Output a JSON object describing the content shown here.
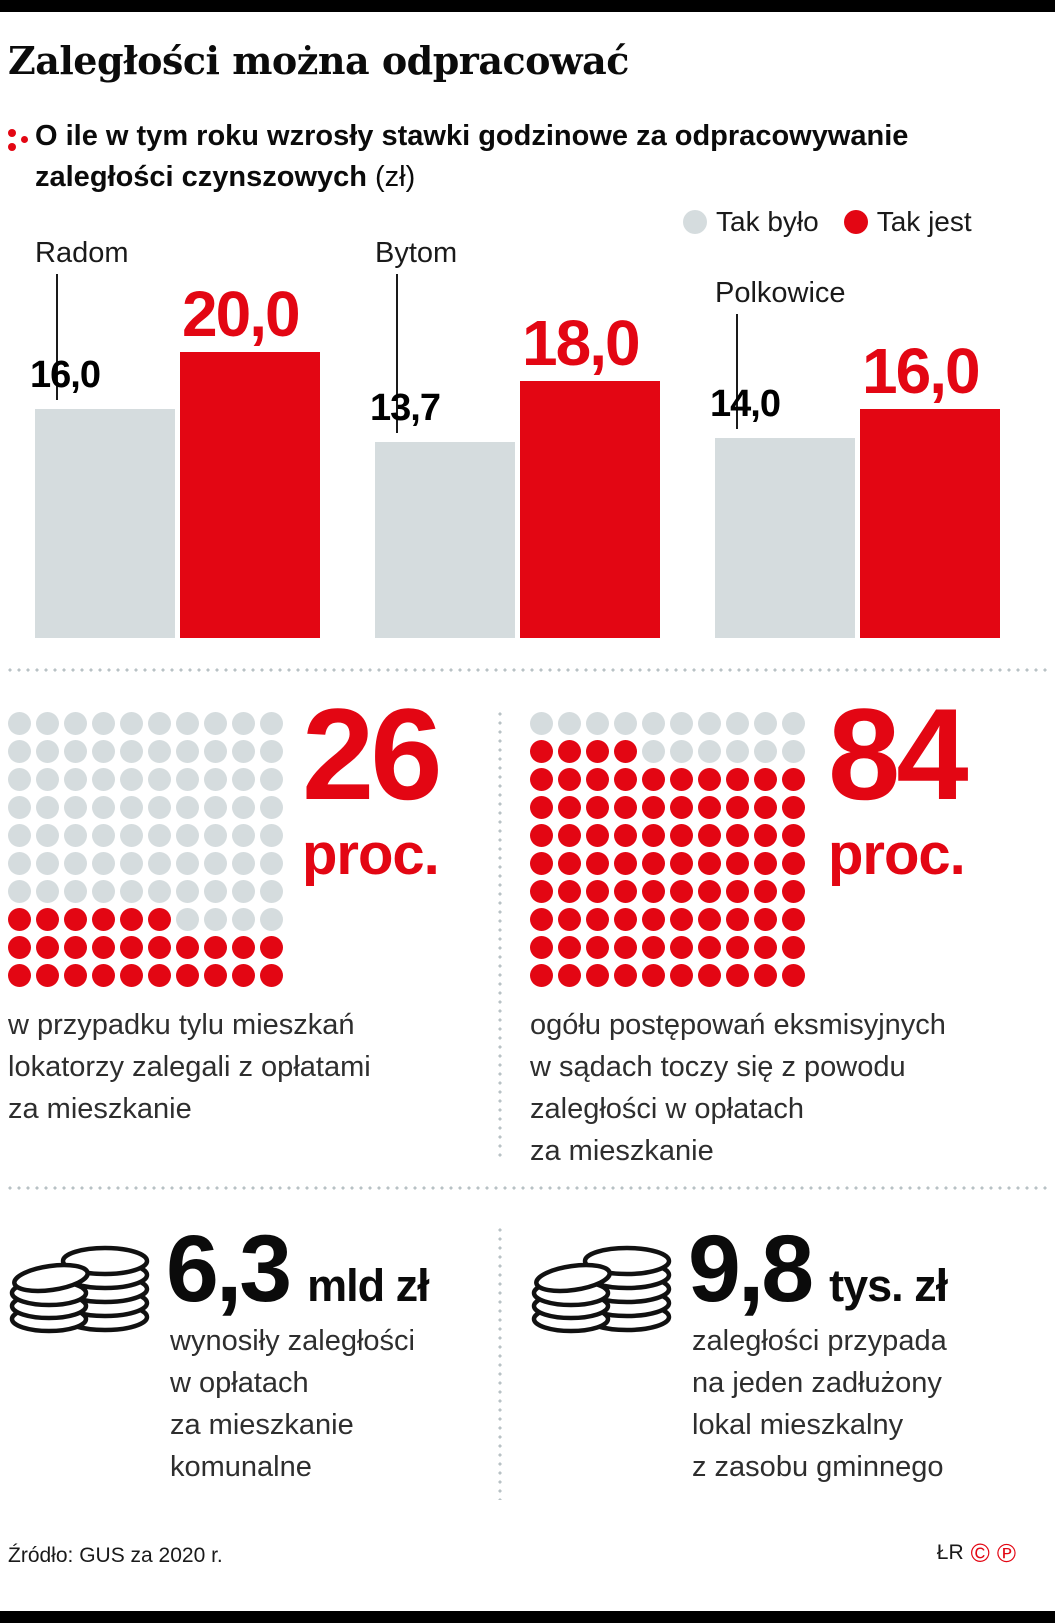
{
  "header": {
    "title": "Zaległości można odpracować",
    "subtitle_line1": "O ile w tym roku wzrosły stawki godzinowe za odpracowywanie",
    "subtitle_line2": "zaległości czynszowych",
    "subtitle_unit": "(zł)"
  },
  "legend": {
    "was": "Tak było",
    "is": "Tak jest"
  },
  "colors": {
    "red": "#e30613",
    "gray": "#d5dcde"
  },
  "chart_data": [
    {
      "type": "bar",
      "title": "O ile w tym roku wzrosły stawki godzinowe za odpracowywanie zaległości czynszowych (zł)",
      "categories": [
        "Radom",
        "Bytom",
        "Polkowice"
      ],
      "series": [
        {
          "name": "Tak było",
          "color": "#d5dcde",
          "values": [
            16.0,
            13.7,
            14.0
          ],
          "labels": [
            "16,0",
            "13,7",
            "14,0"
          ]
        },
        {
          "name": "Tak jest",
          "color": "#e30613",
          "values": [
            20.0,
            18.0,
            16.0
          ],
          "labels": [
            "20,0",
            "18,0",
            "16,0"
          ]
        }
      ],
      "ylim": [
        0,
        20
      ],
      "unit": "zł",
      "legend_position": "top-right",
      "grid": false
    },
    {
      "type": "waffle",
      "value": 26,
      "total": 100,
      "columns": 10,
      "value_label": "26",
      "unit_label": "proc.",
      "filled_color": "#e30613",
      "empty_color": "#d5dcde",
      "fill_order": "bottom-left",
      "caption": "w przypadku tylu mieszkań\nlokatorzy zalegali z opłatami\nza mieszkanie"
    },
    {
      "type": "waffle",
      "value": 84,
      "total": 100,
      "columns": 10,
      "value_label": "84",
      "unit_label": "proc.",
      "filled_color": "#e30613",
      "empty_color": "#d5dcde",
      "fill_order": "bottom-left",
      "caption": "ogółu postępowań eksmisyjnych\nw sądach toczy się z powodu\nzaległości w opłatach\nza mieszkanie"
    },
    {
      "type": "stat",
      "icon": "coins-icon",
      "value": "6,3",
      "unit": "mld zł",
      "caption": "wynosiły zaległości\nw opłatach\nza mieszkanie\nkomunalne"
    },
    {
      "type": "stat",
      "icon": "coins-icon",
      "value": "9,8",
      "unit": "tys. zł",
      "caption": "zaległości przypada\nna jeden zadłużony\nlokal mieszkalny\nz zasobu gminnego"
    }
  ],
  "footer": {
    "source": "Źródło: GUS za 2020 r.",
    "credit": "ŁR",
    "copyright_mark": "©",
    "phonogram_mark": "℗"
  }
}
